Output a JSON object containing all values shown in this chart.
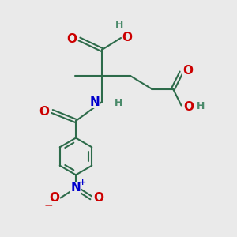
{
  "bg_color": "#eaeaea",
  "bond_color": "#2d6b4a",
  "bond_width": 1.5,
  "atom_colors": {
    "O": "#cc0000",
    "N": "#0000cc",
    "H": "#4a8a6a",
    "C": "#2d6b4a"
  },
  "font_size_atom": 11,
  "font_size_h": 9
}
